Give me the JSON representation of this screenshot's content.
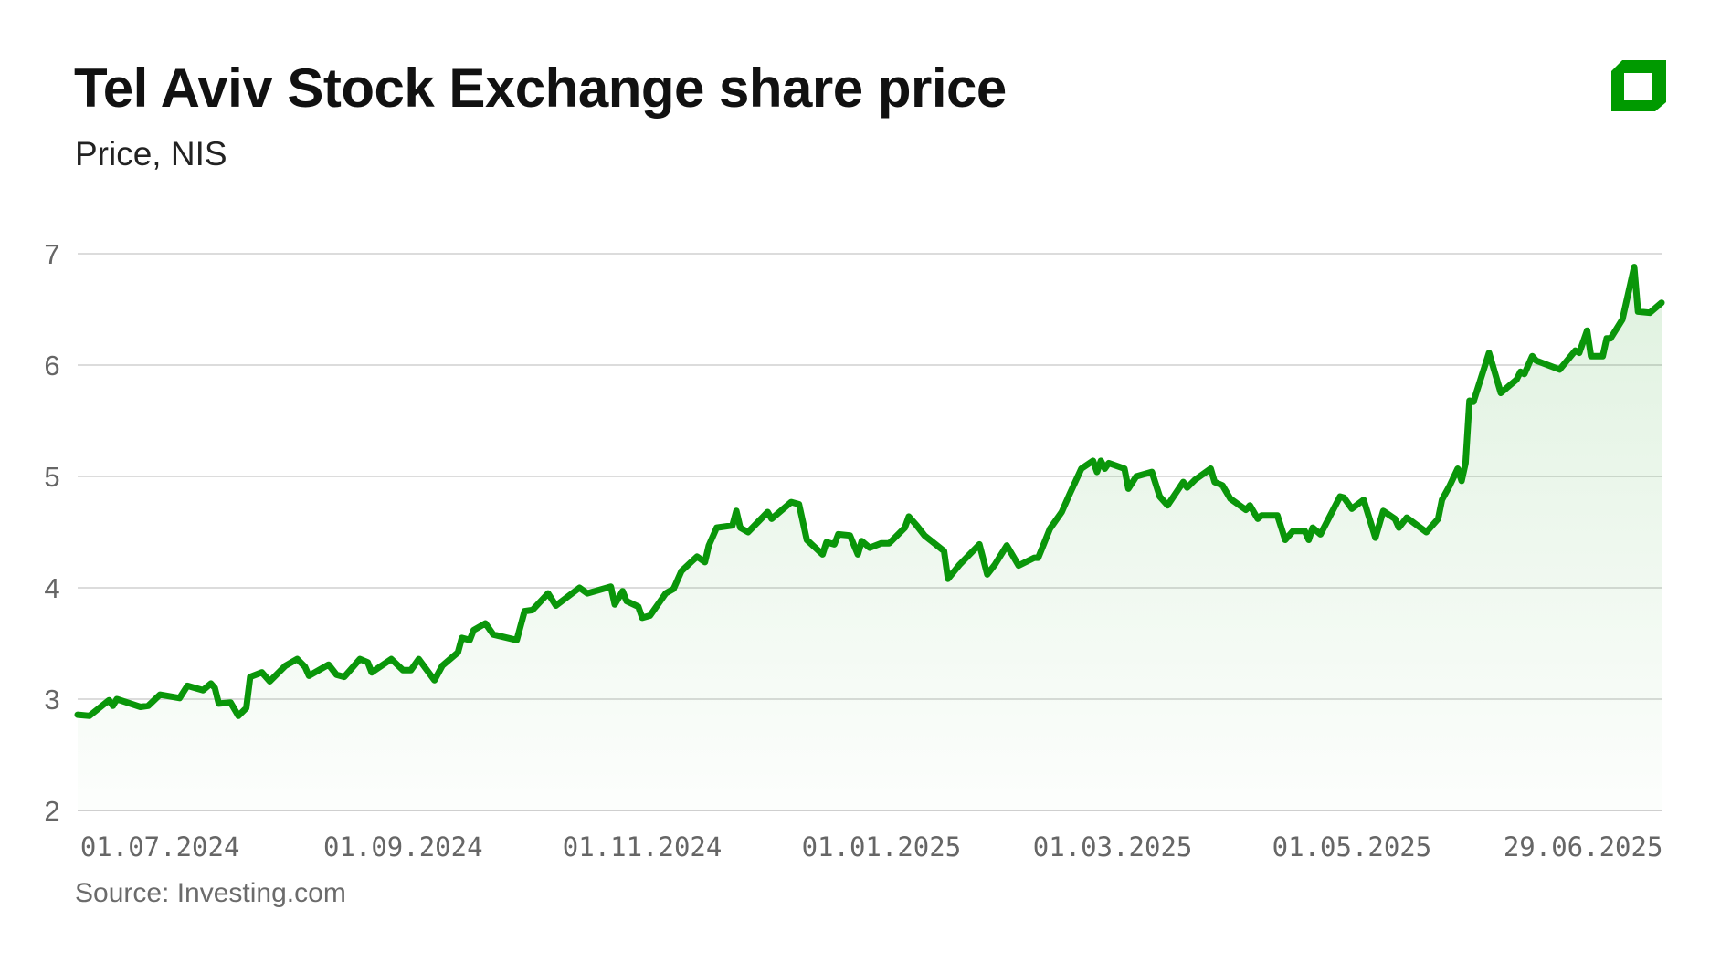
{
  "header": {
    "title": "Tel Aviv Stock Exchange share price",
    "subtitle": "Price, NIS"
  },
  "footer": {
    "source": "Source: Investing.com"
  },
  "logo": {
    "icon": "green-square-logo",
    "color": "#009a00"
  },
  "colors": {
    "line": "#0a960a",
    "fill": "#0a960a",
    "grid": "#dcdcdc"
  },
  "chart_data": {
    "type": "area",
    "title": "Tel Aviv Stock Exchange share price",
    "subtitle": "Price, NIS",
    "ylim": [
      2,
      7
    ],
    "yticks": [
      2,
      3,
      4,
      5,
      6,
      7
    ],
    "xlim": [
      "2024-06-10",
      "2025-07-19"
    ],
    "xticks": [
      {
        "date": "2024-07-01",
        "label": "01.07.2024"
      },
      {
        "date": "2024-09-01",
        "label": "01.09.2024"
      },
      {
        "date": "2024-11-01",
        "label": "01.11.2024"
      },
      {
        "date": "2025-01-01",
        "label": "01.01.2025"
      },
      {
        "date": "2025-03-01",
        "label": "01.03.2025"
      },
      {
        "date": "2025-05-01",
        "label": "01.05.2025"
      },
      {
        "date": "2025-06-29",
        "label": "29.06.2025"
      }
    ],
    "grid": true,
    "points": [
      [
        "2024-06-10",
        2.86
      ],
      [
        "2024-06-13",
        2.85
      ],
      [
        "2024-06-18",
        2.99
      ],
      [
        "2024-06-19",
        2.94
      ],
      [
        "2024-06-20",
        3.0
      ],
      [
        "2024-06-26",
        2.93
      ],
      [
        "2024-06-28",
        2.94
      ],
      [
        "2024-07-01",
        3.04
      ],
      [
        "2024-07-06",
        3.01
      ],
      [
        "2024-07-08",
        3.12
      ],
      [
        "2024-07-12",
        3.08
      ],
      [
        "2024-07-14",
        3.14
      ],
      [
        "2024-07-15",
        3.1
      ],
      [
        "2024-07-16",
        2.96
      ],
      [
        "2024-07-19",
        2.97
      ],
      [
        "2024-07-21",
        2.85
      ],
      [
        "2024-07-23",
        2.92
      ],
      [
        "2024-07-24",
        3.2
      ],
      [
        "2024-07-27",
        3.24
      ],
      [
        "2024-07-29",
        3.16
      ],
      [
        "2024-08-02",
        3.3
      ],
      [
        "2024-08-05",
        3.36
      ],
      [
        "2024-08-07",
        3.29
      ],
      [
        "2024-08-08",
        3.21
      ],
      [
        "2024-08-13",
        3.31
      ],
      [
        "2024-08-15",
        3.22
      ],
      [
        "2024-08-17",
        3.2
      ],
      [
        "2024-08-21",
        3.36
      ],
      [
        "2024-08-23",
        3.33
      ],
      [
        "2024-08-24",
        3.24
      ],
      [
        "2024-08-29",
        3.36
      ],
      [
        "2024-09-01",
        3.26
      ],
      [
        "2024-09-03",
        3.26
      ],
      [
        "2024-09-05",
        3.36
      ],
      [
        "2024-09-09",
        3.17
      ],
      [
        "2024-09-11",
        3.3
      ],
      [
        "2024-09-15",
        3.42
      ],
      [
        "2024-09-16",
        3.55
      ],
      [
        "2024-09-18",
        3.53
      ],
      [
        "2024-09-19",
        3.62
      ],
      [
        "2024-09-22",
        3.68
      ],
      [
        "2024-09-24",
        3.58
      ],
      [
        "2024-09-30",
        3.53
      ],
      [
        "2024-10-02",
        3.79
      ],
      [
        "2024-10-04",
        3.8
      ],
      [
        "2024-10-08",
        3.95
      ],
      [
        "2024-10-10",
        3.84
      ],
      [
        "2024-10-16",
        4.0
      ],
      [
        "2024-10-18",
        3.95
      ],
      [
        "2024-10-24",
        4.01
      ],
      [
        "2024-10-25",
        3.85
      ],
      [
        "2024-10-27",
        3.97
      ],
      [
        "2024-10-28",
        3.88
      ],
      [
        "2024-10-31",
        3.83
      ],
      [
        "2024-11-01",
        3.73
      ],
      [
        "2024-11-03",
        3.75
      ],
      [
        "2024-11-07",
        3.95
      ],
      [
        "2024-11-09",
        3.99
      ],
      [
        "2024-11-11",
        4.15
      ],
      [
        "2024-11-15",
        4.28
      ],
      [
        "2024-11-17",
        4.23
      ],
      [
        "2024-11-18",
        4.38
      ],
      [
        "2024-11-20",
        4.54
      ],
      [
        "2024-11-24",
        4.56
      ],
      [
        "2024-11-25",
        4.69
      ],
      [
        "2024-11-26",
        4.54
      ],
      [
        "2024-11-28",
        4.5
      ],
      [
        "2024-12-03",
        4.68
      ],
      [
        "2024-12-04",
        4.62
      ],
      [
        "2024-12-09",
        4.77
      ],
      [
        "2024-12-11",
        4.75
      ],
      [
        "2024-12-13",
        4.43
      ],
      [
        "2024-12-17",
        4.3
      ],
      [
        "2024-12-18",
        4.41
      ],
      [
        "2024-12-20",
        4.39
      ],
      [
        "2024-12-21",
        4.48
      ],
      [
        "2024-12-24",
        4.47
      ],
      [
        "2024-12-26",
        4.3
      ],
      [
        "2024-12-27",
        4.42
      ],
      [
        "2024-12-29",
        4.36
      ],
      [
        "2025-01-01",
        4.4
      ],
      [
        "2025-01-03",
        4.4
      ],
      [
        "2025-01-07",
        4.54
      ],
      [
        "2025-01-08",
        4.64
      ],
      [
        "2025-01-10",
        4.56
      ],
      [
        "2025-01-12",
        4.47
      ],
      [
        "2025-01-17",
        4.33
      ],
      [
        "2025-01-18",
        4.08
      ],
      [
        "2025-01-21",
        4.21
      ],
      [
        "2025-01-26",
        4.39
      ],
      [
        "2025-01-28",
        4.12
      ],
      [
        "2025-01-30",
        4.21
      ],
      [
        "2025-02-02",
        4.38
      ],
      [
        "2025-02-05",
        4.2
      ],
      [
        "2025-02-09",
        4.27
      ],
      [
        "2025-02-10",
        4.27
      ],
      [
        "2025-02-13",
        4.53
      ],
      [
        "2025-02-16",
        4.68
      ],
      [
        "2025-02-18",
        4.84
      ],
      [
        "2025-02-21",
        5.07
      ],
      [
        "2025-02-24",
        5.14
      ],
      [
        "2025-02-25",
        5.04
      ],
      [
        "2025-02-26",
        5.14
      ],
      [
        "2025-02-27",
        5.07
      ],
      [
        "2025-02-28",
        5.12
      ],
      [
        "2025-03-04",
        5.07
      ],
      [
        "2025-03-05",
        4.89
      ],
      [
        "2025-03-07",
        5.0
      ],
      [
        "2025-03-11",
        5.04
      ],
      [
        "2025-03-13",
        4.82
      ],
      [
        "2025-03-15",
        4.74
      ],
      [
        "2025-03-19",
        4.95
      ],
      [
        "2025-03-20",
        4.9
      ],
      [
        "2025-03-22",
        4.97
      ],
      [
        "2025-03-26",
        5.07
      ],
      [
        "2025-03-27",
        4.95
      ],
      [
        "2025-03-29",
        4.92
      ],
      [
        "2025-03-31",
        4.8
      ],
      [
        "2025-04-04",
        4.7
      ],
      [
        "2025-04-05",
        4.74
      ],
      [
        "2025-04-07",
        4.62
      ],
      [
        "2025-04-08",
        4.65
      ],
      [
        "2025-04-12",
        4.65
      ],
      [
        "2025-04-14",
        4.43
      ],
      [
        "2025-04-16",
        4.51
      ],
      [
        "2025-04-19",
        4.51
      ],
      [
        "2025-04-20",
        4.43
      ],
      [
        "2025-04-21",
        4.54
      ],
      [
        "2025-04-23",
        4.48
      ],
      [
        "2025-04-28",
        4.82
      ],
      [
        "2025-04-29",
        4.81
      ],
      [
        "2025-05-01",
        4.71
      ],
      [
        "2025-05-04",
        4.79
      ],
      [
        "2025-05-07",
        4.45
      ],
      [
        "2025-05-09",
        4.69
      ],
      [
        "2025-05-12",
        4.62
      ],
      [
        "2025-05-13",
        4.54
      ],
      [
        "2025-05-15",
        4.63
      ],
      [
        "2025-05-20",
        4.5
      ],
      [
        "2025-05-23",
        4.62
      ],
      [
        "2025-05-24",
        4.79
      ],
      [
        "2025-05-26",
        4.92
      ],
      [
        "2025-05-28",
        5.07
      ],
      [
        "2025-05-29",
        4.96
      ],
      [
        "2025-05-30",
        5.12
      ],
      [
        "2025-05-31",
        5.68
      ],
      [
        "2025-06-01",
        5.67
      ],
      [
        "2025-06-05",
        6.11
      ],
      [
        "2025-06-08",
        5.75
      ],
      [
        "2025-06-12",
        5.87
      ],
      [
        "2025-06-13",
        5.94
      ],
      [
        "2025-06-14",
        5.92
      ],
      [
        "2025-06-16",
        6.08
      ],
      [
        "2025-06-17",
        6.04
      ],
      [
        "2025-06-23",
        5.96
      ],
      [
        "2025-06-27",
        6.13
      ],
      [
        "2025-06-28",
        6.11
      ],
      [
        "2025-06-30",
        6.31
      ],
      [
        "2025-07-01",
        6.08
      ],
      [
        "2025-07-04",
        6.08
      ],
      [
        "2025-07-05",
        6.24
      ],
      [
        "2025-07-06",
        6.24
      ],
      [
        "2025-07-09",
        6.41
      ],
      [
        "2025-07-12",
        6.88
      ],
      [
        "2025-07-13",
        6.48
      ],
      [
        "2025-07-16",
        6.47
      ],
      [
        "2025-07-19",
        6.56
      ]
    ]
  }
}
